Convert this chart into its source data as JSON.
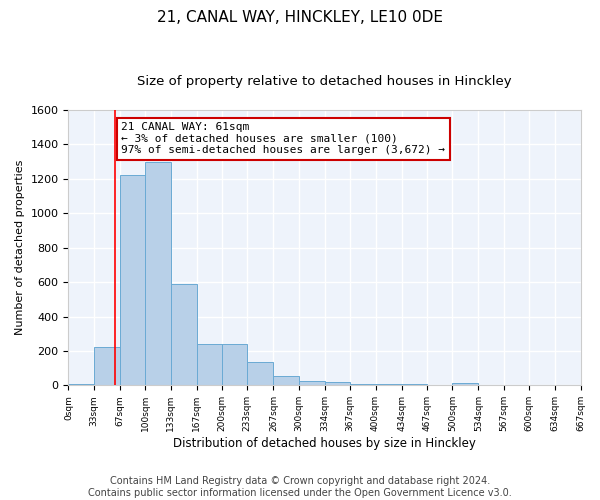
{
  "title": "21, CANAL WAY, HINCKLEY, LE10 0DE",
  "subtitle": "Size of property relative to detached houses in Hinckley",
  "xlabel": "Distribution of detached houses by size in Hinckley",
  "ylabel": "Number of detached properties",
  "bar_color": "#b8d0e8",
  "bar_edge_color": "#6aaad4",
  "background_color": "#eef3fb",
  "grid_color": "#ffffff",
  "bin_edges": [
    0,
    33,
    67,
    100,
    133,
    167,
    200,
    233,
    267,
    300,
    334,
    367,
    400,
    434,
    467,
    500,
    534,
    567,
    600,
    634,
    667
  ],
  "bar_heights": [
    10,
    220,
    1220,
    1300,
    590,
    240,
    240,
    135,
    55,
    25,
    20,
    10,
    10,
    10,
    0,
    15,
    0,
    0,
    0,
    0
  ],
  "tick_labels": [
    "0sqm",
    "33sqm",
    "67sqm",
    "100sqm",
    "133sqm",
    "167sqm",
    "200sqm",
    "233sqm",
    "267sqm",
    "300sqm",
    "334sqm",
    "367sqm",
    "400sqm",
    "434sqm",
    "467sqm",
    "500sqm",
    "534sqm",
    "567sqm",
    "600sqm",
    "634sqm",
    "667sqm"
  ],
  "red_line_x": 61,
  "annotation_text": "21 CANAL WAY: 61sqm\n← 3% of detached houses are smaller (100)\n97% of semi-detached houses are larger (3,672) →",
  "annotation_box_color": "#ffffff",
  "annotation_border_color": "#cc0000",
  "ylim": [
    0,
    1600
  ],
  "yticks": [
    0,
    200,
    400,
    600,
    800,
    1000,
    1200,
    1400,
    1600
  ],
  "footer_text": "Contains HM Land Registry data © Crown copyright and database right 2024.\nContains public sector information licensed under the Open Government Licence v3.0.",
  "title_fontsize": 11,
  "subtitle_fontsize": 9.5,
  "annotation_fontsize": 8,
  "footer_fontsize": 7,
  "ylabel_fontsize": 8,
  "xlabel_fontsize": 8.5,
  "tick_fontsize": 6.5
}
